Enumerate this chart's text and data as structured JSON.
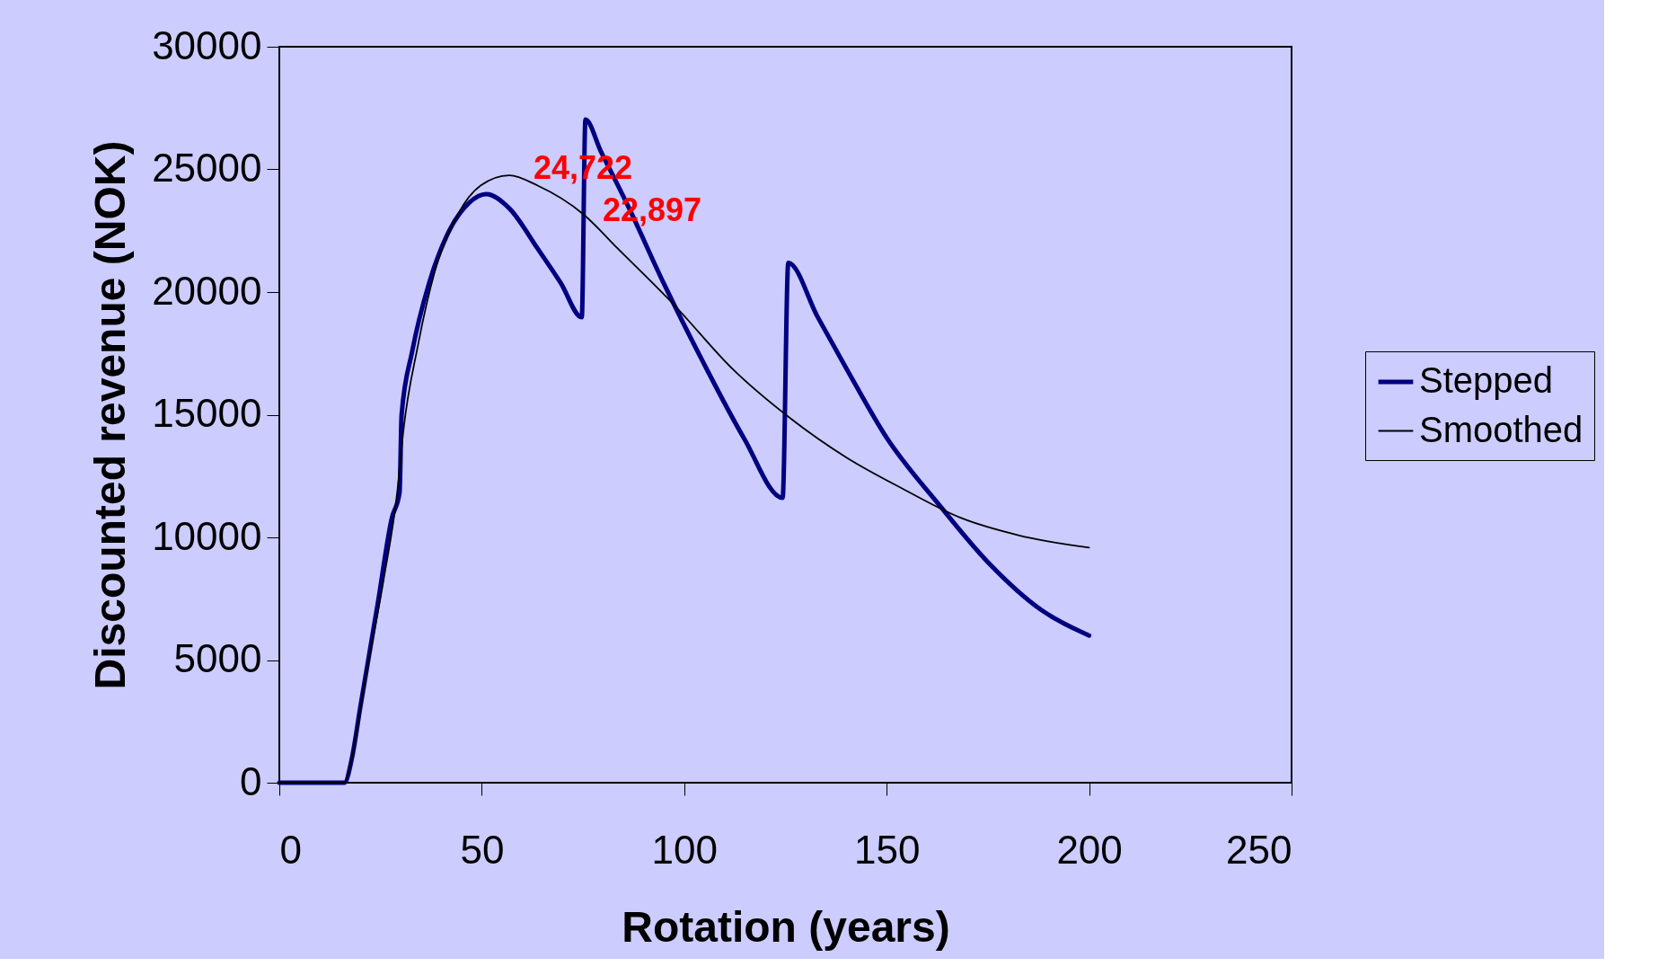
{
  "chart_data": {
    "type": "line",
    "xlabel": "Rotation (years)",
    "ylabel": "Discounted revenue (NOK)",
    "xlim": [
      0,
      250
    ],
    "xticks": [
      0,
      50,
      100,
      150,
      200,
      250
    ],
    "ylim": [
      0,
      30000
    ],
    "yticks": [
      0,
      5000,
      10000,
      15000,
      20000,
      25000,
      30000
    ],
    "grid": false,
    "legend": "right",
    "marker": "none",
    "line_style": "solid",
    "series": [
      {
        "name": "Stepped",
        "color": "#000080",
        "x": [
          0,
          16.1,
          17.9,
          20,
          24.3,
          27.8,
          29.7,
          30.2,
          32.8,
          37,
          41.2,
          46.9,
          51.1,
          56.8,
          63.8,
          69.5,
          74.7,
          75.6,
          79.4,
          86.4,
          94.9,
          104.8,
          114.7,
          124.3,
          125.7,
          133,
          140.1,
          150,
          162.7,
          175.4,
          188.1,
          200
        ],
        "values": [
          0,
          0,
          980,
          3080,
          7290,
          10790,
          11840,
          15000,
          17570,
          20370,
          22240,
          23640,
          23990,
          23410,
          21770,
          20370,
          18970,
          27030,
          25740,
          23410,
          20370,
          17100,
          14060,
          11610,
          21190,
          18970,
          16870,
          14060,
          11380,
          8920,
          7050,
          6000
        ]
      },
      {
        "name": "Smoothed",
        "color": "#000000",
        "x": [
          0,
          16,
          17.2,
          21.5,
          25.7,
          29.2,
          30.6,
          34.2,
          38.4,
          44.1,
          49.7,
          56.8,
          63.8,
          75.1,
          83.6,
          97.7,
          111.9,
          126,
          140.1,
          154.2,
          168.4,
          182.5,
          200
        ],
        "values": [
          0,
          0,
          510,
          4490,
          8220,
          11960,
          14300,
          17800,
          20840,
          23170,
          24340,
          24760,
          24340,
          23170,
          21770,
          19440,
          16870,
          14880,
          13250,
          11960,
          10790,
          10090,
          9580
        ]
      }
    ],
    "annotations": [
      "24,722",
      "22,897"
    ]
  }
}
